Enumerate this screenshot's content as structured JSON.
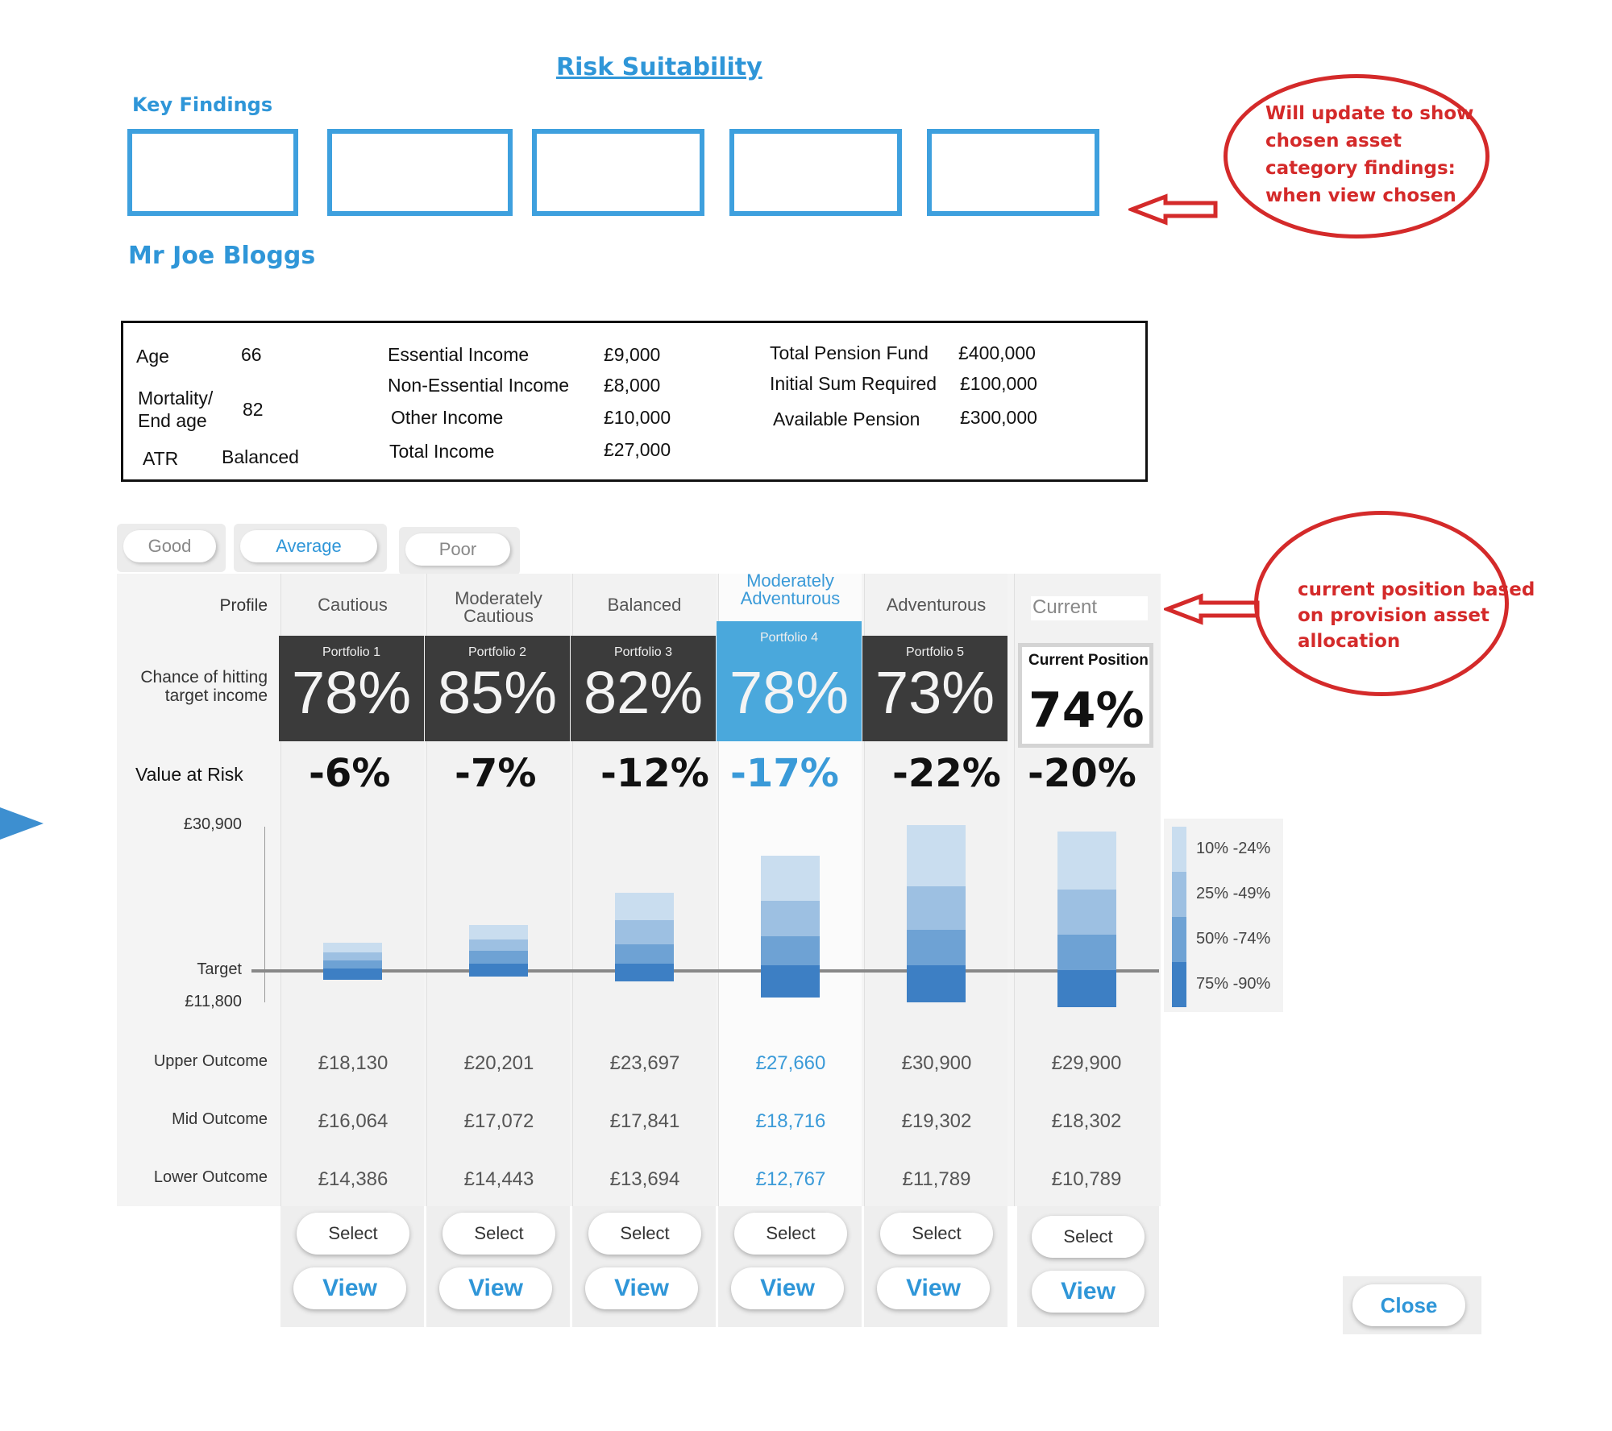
{
  "title": "Risk Suitability",
  "key_findings_label": "Key Findings",
  "client_name": "Mr Joe Bloggs",
  "client_info": {
    "age_label": "Age",
    "age_value": "66",
    "mortality_label_1": "Mortality/",
    "mortality_label_2": "End age",
    "mortality_value": "82",
    "atr_label": "ATR",
    "atr_value": "Balanced",
    "essential_income_label": "Essential Income",
    "essential_income_value": "£9,000",
    "non_essential_income_label": "Non-Essential Income",
    "non_essential_income_value": "£8,000",
    "other_income_label": "Other Income",
    "other_income_value": "£10,000",
    "total_income_label": "Total Income",
    "total_income_value": "£27,000",
    "total_pension_fund_label": "Total Pension Fund",
    "total_pension_fund_value": "£400,000",
    "initial_sum_label": "Initial Sum Required",
    "initial_sum_value": "£100,000",
    "available_pension_label": "Available Pension",
    "available_pension_value": "£300,000"
  },
  "filters": [
    "Good",
    "Average",
    "Poor"
  ],
  "row_labels": {
    "profile": "Profile",
    "chance_1": "Chance of hitting",
    "chance_2": "target income",
    "value_at_risk": "Value at Risk",
    "axis_top": "£30,900",
    "target": "Target",
    "axis_bottom": "£11,800",
    "upper": "Upper Outcome",
    "mid": "Mid Outcome",
    "lower": "Lower Outcome"
  },
  "portfolios": [
    {
      "profile_1": "Cautious",
      "profile_2": "",
      "portfolio": "Portfolio 1",
      "chance": "78%",
      "var": "-6%",
      "upper": "£18,130",
      "mid": "£16,064",
      "lower": "£14,386",
      "select": "Select",
      "view": "View"
    },
    {
      "profile_1": "Moderately",
      "profile_2": "Cautious",
      "portfolio": "Portfolio 2",
      "chance": "85%",
      "var": "-7%",
      "upper": "£20,201",
      "mid": "£17,072",
      "lower": "£14,443",
      "select": "Select",
      "view": "View"
    },
    {
      "profile_1": "Balanced",
      "profile_2": "",
      "portfolio": "Portfolio 3",
      "chance": "82%",
      "var": "-12%",
      "upper": "£23,697",
      "mid": "£17,841",
      "lower": "£13,694",
      "select": "Select",
      "view": "View"
    },
    {
      "profile_1": "Moderately",
      "profile_2": "Adventurous",
      "portfolio": "Portfolio 4",
      "chance": "78%",
      "var": "-17%",
      "upper": "£27,660",
      "mid": "£18,716",
      "lower": "£12,767",
      "select": "Select",
      "view": "View"
    },
    {
      "profile_1": "Adventurous",
      "profile_2": "",
      "portfolio": "Portfolio 5",
      "chance": "73%",
      "var": "-22%",
      "upper": "£30,900",
      "mid": "£19,302",
      "lower": "£11,789",
      "select": "Select",
      "view": "View"
    }
  ],
  "current": {
    "profile": "Current",
    "header": "Current Position",
    "chance": "74%",
    "var": "-20%",
    "upper": "£29,900",
    "mid": "£18,302",
    "lower": "£10,789",
    "select": "Select",
    "view": "View"
  },
  "legend": [
    "10% -24%",
    "25% -49%",
    "50% -74%",
    "75% -90%"
  ],
  "close_label": "Close",
  "annotations": {
    "note1": [
      "Will update to show",
      "chosen asset",
      "category findings:",
      "when view chosen"
    ],
    "note2": [
      "current position based",
      "on provision asset",
      "allocation"
    ]
  },
  "colors": {
    "accent": "#2f96d8",
    "highlight": "#4aa8dc",
    "dark_tile": "#3b3b3b",
    "annotation": "#d42a2a"
  }
}
